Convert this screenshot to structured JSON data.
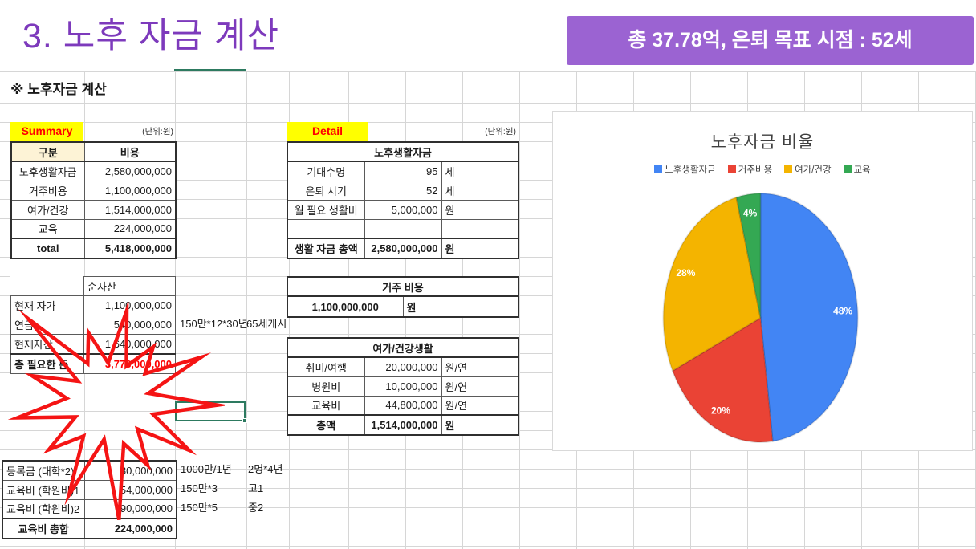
{
  "header": {
    "title": "3. 노후 자금 계산",
    "badge": "총 37.78억, 은퇴 목표 시점  : 52세"
  },
  "sheet": {
    "heading": "※ 노후자금 계산",
    "unit_note": "(단위:원)"
  },
  "summary": {
    "label": "Summary",
    "columns": [
      "구분",
      "비용"
    ],
    "rows": [
      [
        "노후생활자금",
        "2,580,000,000"
      ],
      [
        "거주비용",
        "1,100,000,000"
      ],
      [
        "여가/건강",
        "1,514,000,000"
      ],
      [
        "교육",
        "224,000,000"
      ]
    ],
    "total": [
      "total",
      "5,418,000,000"
    ]
  },
  "net_assets": {
    "header": "순자산",
    "rows": [
      [
        "현재 자가",
        "1,100,000,000"
      ],
      [
        "연금",
        "540,000,000"
      ],
      [
        "현재자산",
        "1,640,000,000"
      ]
    ],
    "total_label": "총 필요한 돈",
    "total_value": "3,778,000,000",
    "note1": "150만*12*30년",
    "note2": "65세개시"
  },
  "detail": {
    "label": "Detail",
    "life": {
      "title": "노후생활자금",
      "rows": [
        [
          "기대수명",
          "95",
          "세"
        ],
        [
          "은퇴 시기",
          "52",
          "세"
        ],
        [
          "월 필요 생활비",
          "5,000,000",
          "원"
        ]
      ],
      "total": [
        "생활 자금 총액",
        "2,580,000,000",
        "원"
      ]
    },
    "housing": {
      "title": "거주 비용",
      "value": "1,100,000,000",
      "unit": "원"
    },
    "leisure": {
      "title": "여가/건강생활",
      "rows": [
        [
          "취미/여행",
          "20,000,000",
          "원/연"
        ],
        [
          "병원비",
          "10,000,000",
          "원/연"
        ],
        [
          "교육비",
          "44,800,000",
          "원/연"
        ]
      ],
      "total": [
        "총액",
        "1,514,000,000",
        "원"
      ]
    }
  },
  "education": {
    "rows": [
      {
        "label": "등록금 (대학*2)",
        "value": "80,000,000",
        "note1": "1000만/1년",
        "note2": "2명*4년"
      },
      {
        "label": "교육비 (학원비)1",
        "value": "54,000,000",
        "note1": "150만*3",
        "note2": "고1"
      },
      {
        "label": "교육비 (학원비)2",
        "value": "90,000,000",
        "note1": "150만*5",
        "note2": "중2"
      }
    ],
    "total_label": "교육비 총합",
    "total_value": "224,000,000"
  },
  "chart_data": {
    "type": "pie",
    "title": "노후자금 비율",
    "categories": [
      "노후생활자금",
      "거주비용",
      "여가/건강",
      "교육"
    ],
    "values": [
      48,
      20,
      28,
      4
    ],
    "labels": [
      "48%",
      "20%",
      "28%",
      "4%"
    ],
    "colors": [
      "#4285F4",
      "#EA4335",
      "#F4B400",
      "#34A853"
    ],
    "legend_position": "top",
    "start_angle": "12-oclock-clockwise"
  },
  "colors": {
    "title_purple": "#7d3abc",
    "badge_purple": "#9b63d2",
    "highlight_yellow": "#ffff00",
    "highlight_red_text": "#ff0000",
    "selection_green": "#2d7a60",
    "starburst_red": "#f51414"
  }
}
